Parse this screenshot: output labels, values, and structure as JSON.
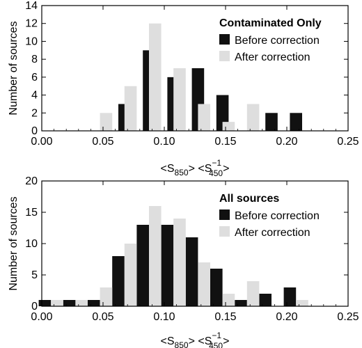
{
  "colors": {
    "before": "#111111",
    "after": "#dedede"
  },
  "chart_data": [
    {
      "type": "bar",
      "name": "top",
      "title": "",
      "xlabel_parts": {
        "open": "<S",
        "sub1": "850",
        "mid": "> <S",
        "sup": "−1",
        "sub2": "450",
        "close": ">"
      },
      "ylabel": "Number of sources",
      "xlim": [
        0,
        0.25
      ],
      "ylim": [
        0,
        14
      ],
      "xticks": [
        0.0,
        0.05,
        0.1,
        0.15,
        0.2,
        0.25
      ],
      "xtick_labels": [
        "0.00",
        "0.05",
        "0.10",
        "0.15",
        "0.20",
        "0.25"
      ],
      "yticks": [
        0,
        2,
        4,
        6,
        8,
        10,
        12,
        14
      ],
      "ytick_labels": [
        "0",
        "2",
        "4",
        "6",
        "8",
        "10",
        "12",
        "14"
      ],
      "legend_title": "Contaminated Only",
      "legend_position": "top-right",
      "series": [
        {
          "name": "Before correction",
          "x": [
            0.0675,
            0.0875,
            0.1075,
            0.1275,
            0.1475,
            0.1875,
            0.2075
          ],
          "values": [
            3,
            9,
            6,
            7,
            4,
            2,
            2
          ]
        },
        {
          "name": "After correction",
          "x": [
            0.0525,
            0.0725,
            0.0925,
            0.1125,
            0.1325,
            0.1525,
            0.1725
          ],
          "values": [
            2,
            5,
            12,
            7,
            3,
            1,
            3
          ]
        }
      ]
    },
    {
      "type": "bar",
      "name": "bottom",
      "title": "",
      "xlabel_parts": {
        "open": "<S",
        "sub1": "850",
        "mid": "> <S",
        "sup": "−1",
        "sub2": "450",
        "close": ">"
      },
      "ylabel": "Number of sources",
      "xlim": [
        0,
        0.25
      ],
      "ylim": [
        0,
        20
      ],
      "xticks": [
        0.0,
        0.05,
        0.1,
        0.15,
        0.2,
        0.25
      ],
      "xtick_labels": [
        "0.00",
        "0.05",
        "0.10",
        "0.15",
        "0.20",
        "0.25"
      ],
      "yticks": [
        0,
        5,
        10,
        15,
        20
      ],
      "ytick_labels": [
        "0",
        "5",
        "10",
        "15",
        "20"
      ],
      "legend_title": "All sources",
      "legend_position": "top-right",
      "series": [
        {
          "name": "Before correction",
          "x": [
            0.0025,
            0.0225,
            0.0425,
            0.0625,
            0.0825,
            0.1025,
            0.1225,
            0.1425,
            0.1625,
            0.1825,
            0.2025
          ],
          "values": [
            1,
            1,
            1,
            8,
            13,
            13,
            11,
            6,
            1,
            2,
            3
          ]
        },
        {
          "name": "After correction",
          "x": [
            0.0125,
            0.0325,
            0.0525,
            0.0725,
            0.0925,
            0.1125,
            0.1325,
            0.1525,
            0.1725,
            0.2125
          ],
          "values": [
            1,
            1,
            3,
            10,
            16,
            14,
            7,
            2,
            4,
            1
          ]
        }
      ]
    }
  ]
}
